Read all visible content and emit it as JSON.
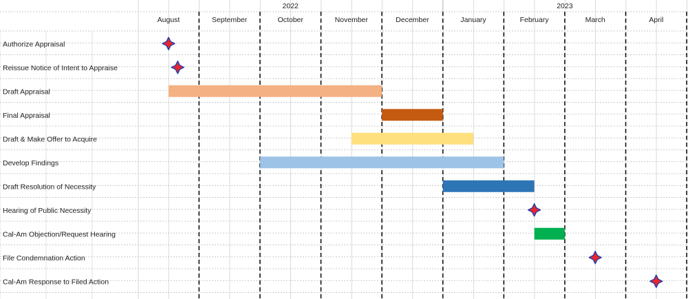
{
  "chart_data": {
    "type": "gantt",
    "years": [
      {
        "label": "2022",
        "months": [
          "August",
          "September",
          "October",
          "November",
          "December"
        ]
      },
      {
        "label": "2023",
        "months": [
          "January",
          "February",
          "March",
          "April"
        ]
      }
    ],
    "months": [
      "August",
      "September",
      "October",
      "November",
      "December",
      "January",
      "February",
      "March",
      "April"
    ],
    "tasks": [
      {
        "name": "Authorize Appraisal",
        "kind": "milestone",
        "date": 0.0
      },
      {
        "name": "Reissue Notice of Intent to Appraise",
        "kind": "milestone",
        "date": 0.15
      },
      {
        "name": "Draft Appraisal",
        "kind": "bar",
        "start": 0.0,
        "end": 3.5,
        "color": "#f4b183"
      },
      {
        "name": "Final Appraisal",
        "kind": "bar",
        "start": 3.5,
        "end": 4.5,
        "color": "#c55a11"
      },
      {
        "name": "Draft & Make Offer to Acquire",
        "kind": "bar",
        "start": 3.0,
        "end": 5.0,
        "color": "#ffe07f"
      },
      {
        "name": "Develop Findings",
        "kind": "bar",
        "start": 1.5,
        "end": 5.5,
        "color": "#9dc3e6"
      },
      {
        "name": "Draft Resolution of Necessity",
        "kind": "bar",
        "start": 4.5,
        "end": 6.0,
        "color": "#2e75b6"
      },
      {
        "name": "Hearing of Public Necessity",
        "kind": "milestone",
        "date": 6.0
      },
      {
        "name": "Cal-Am Objection/Request Hearing",
        "kind": "bar",
        "start": 6.0,
        "end": 6.5,
        "color": "#00b050"
      },
      {
        "name": "File Condemnation Action",
        "kind": "milestone",
        "date": 7.0
      },
      {
        "name": "Cal-Am Response to Filed Action",
        "kind": "milestone",
        "date": 8.0
      }
    ],
    "grid": true,
    "colors": {
      "milestone_fill": "#e8262c",
      "milestone_outline": "#1f3fb0"
    }
  }
}
